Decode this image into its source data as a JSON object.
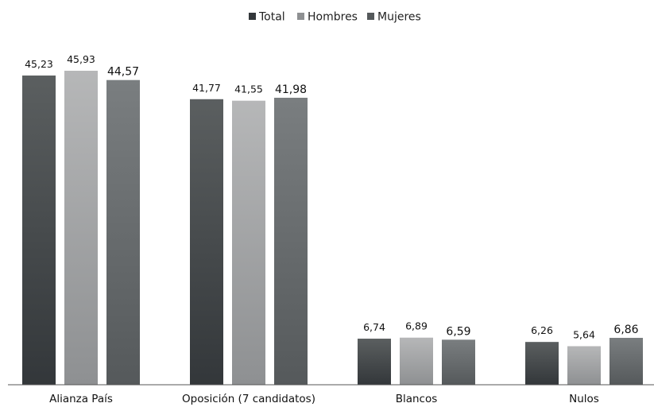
{
  "chart_data": {
    "type": "bar",
    "title": "",
    "xlabel": "",
    "ylabel": "",
    "ylim": [
      0,
      50
    ],
    "grid": false,
    "legend_position": "top-center",
    "categories": [
      "Alianza País",
      "Oposición (7 candidatos)",
      "Blancos",
      "Nulos"
    ],
    "series": [
      {
        "name": "Total",
        "values": [
          45.23,
          41.77,
          6.74,
          6.26
        ],
        "labels": [
          "45,23",
          "41,77",
          "6,74",
          "6,26"
        ],
        "color_top": "#5b5f60",
        "color_bottom": "#33373a"
      },
      {
        "name": "Hombres",
        "values": [
          45.93,
          41.55,
          6.89,
          5.64
        ],
        "labels": [
          "45,93",
          "41,55",
          "6,89",
          "5,64"
        ],
        "color_top": "#b6b7b8",
        "color_bottom": "#8e9092"
      },
      {
        "name": "Mujeres",
        "values": [
          44.57,
          41.98,
          6.59,
          6.86
        ],
        "labels": [
          "44,57",
          "41,98",
          "6,59",
          "6,86"
        ],
        "color_top": "#7a7e80",
        "color_bottom": "#55595b"
      }
    ]
  }
}
